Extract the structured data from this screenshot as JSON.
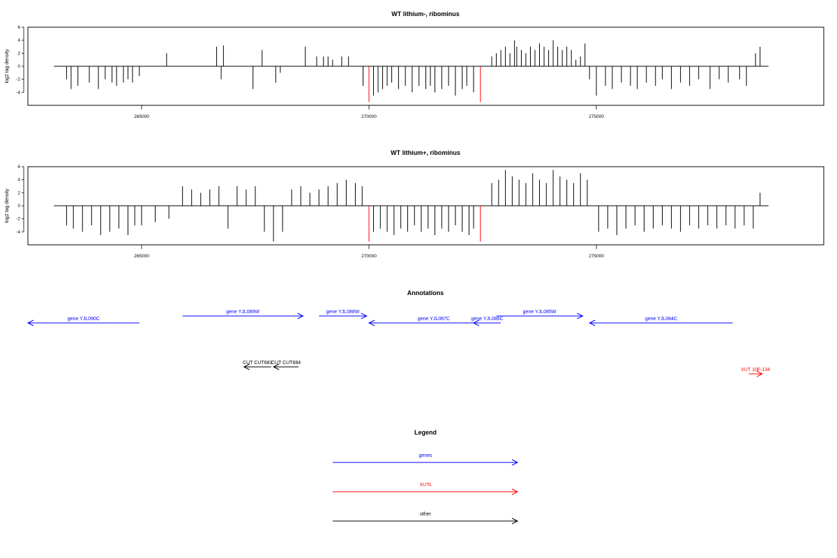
{
  "chart_data": [
    {
      "type": "bar",
      "title": "WT lithium-, ribominus",
      "ylabel": "log2 tag density",
      "xlim": [
        262500,
        280000
      ],
      "ylim": [
        -6,
        6
      ],
      "yticks": [
        -4,
        -2,
        0,
        2,
        4,
        6
      ],
      "xticks": [
        265000,
        270000,
        275000
      ],
      "x_tick_labels": [
        "265000",
        "270000",
        "275000"
      ],
      "series": [
        {
          "color": "#000000",
          "x": [
            263350,
            263450,
            263600,
            263850,
            264050,
            264200,
            264350,
            264450,
            264600,
            264700,
            264800,
            264950,
            265550,
            266650,
            266750,
            266800,
            267450,
            267650,
            267950,
            268050,
            268600,
            268850,
            269000,
            269100,
            269200,
            269400,
            269550,
            269870,
            270100,
            270200,
            270300,
            270400,
            270500,
            270650,
            270800,
            270950,
            271100,
            271250,
            271350,
            271450,
            271600,
            271750,
            271900,
            272050,
            272150,
            272300,
            272700,
            272800,
            272900,
            273000,
            273100,
            273200,
            273250,
            273350,
            273450,
            273550,
            273650,
            273750,
            273850,
            273950,
            274050,
            274150,
            274250,
            274350,
            274450,
            274550,
            274650,
            274750,
            274850,
            275000,
            275200,
            275350,
            275550,
            275750,
            275900,
            276100,
            276300,
            276450,
            276650,
            276850,
            277050,
            277250,
            277500,
            277700,
            277900,
            278150,
            278300,
            278500,
            278600
          ],
          "y": [
            -2,
            -3.5,
            -3,
            -2.5,
            -3.5,
            -2,
            -2.5,
            -3,
            -2.5,
            -2,
            -2.5,
            -1.5,
            2,
            3,
            -2,
            3.2,
            -3.5,
            2.5,
            -2.5,
            -1,
            3,
            1.5,
            1.5,
            1.5,
            1,
            1.5,
            1.5,
            -3,
            -4.5,
            -4,
            -3.5,
            -3,
            -2.5,
            -3.5,
            -3,
            -4,
            -3,
            -3.5,
            -3,
            -4,
            -3.5,
            -3,
            -4.5,
            -3.5,
            -3,
            -4,
            1.5,
            2,
            2.5,
            3,
            2,
            4,
            3,
            2.5,
            2,
            3,
            2.5,
            3.5,
            3,
            2.5,
            4,
            3,
            2.5,
            3,
            2.5,
            1,
            1.5,
            3.5,
            -2,
            -4.5,
            -3,
            -3.5,
            -2.5,
            -3,
            -3.5,
            -2.5,
            -3,
            -2,
            -3.5,
            -2.5,
            -3,
            -2,
            -3.5,
            -2,
            -2.5,
            -2,
            -3,
            2,
            3
          ]
        },
        {
          "color": "#ff0000",
          "x": [
            270000,
            272450
          ],
          "y": [
            -5.5,
            -5.5
          ]
        }
      ]
    },
    {
      "type": "bar",
      "title": "WT lithium+, ribominus",
      "ylabel": "log2 tag density",
      "xlim": [
        262500,
        280000
      ],
      "ylim": [
        -6,
        6
      ],
      "yticks": [
        -4,
        -2,
        0,
        2,
        4,
        6
      ],
      "xticks": [
        265000,
        270000,
        275000
      ],
      "x_tick_labels": [
        "265000",
        "270000",
        "275000"
      ],
      "series": [
        {
          "color": "#000000",
          "x": [
            263350,
            263500,
            263700,
            263900,
            264100,
            264300,
            264500,
            264700,
            264850,
            265000,
            265300,
            265600,
            265900,
            266100,
            266300,
            266500,
            266700,
            266900,
            267100,
            267300,
            267500,
            267700,
            267900,
            268100,
            268300,
            268500,
            268700,
            268900,
            269100,
            269300,
            269500,
            269700,
            269850,
            270100,
            270250,
            270400,
            270550,
            270700,
            270850,
            271000,
            271150,
            271300,
            271450,
            271600,
            271750,
            271900,
            272050,
            272200,
            272300,
            272700,
            272850,
            273000,
            273150,
            273300,
            273450,
            273600,
            273750,
            273900,
            274050,
            274200,
            274350,
            274500,
            274650,
            274800,
            275050,
            275250,
            275450,
            275650,
            275850,
            276050,
            276250,
            276450,
            276650,
            276850,
            277050,
            277250,
            277450,
            277650,
            277850,
            278050,
            278250,
            278450,
            278600
          ],
          "y": [
            -3,
            -3.5,
            -4,
            -3,
            -4.5,
            -4,
            -3.5,
            -4.5,
            -3,
            -3,
            -2.5,
            -2,
            3,
            2.5,
            2,
            2.5,
            3,
            -3.5,
            3,
            2.5,
            3,
            -4,
            -5.5,
            -4,
            2.5,
            3,
            2,
            2.5,
            3,
            3.5,
            4,
            3.5,
            3,
            -4,
            -3.5,
            -4,
            -4.5,
            -3.5,
            -4,
            -3,
            -4,
            -3.5,
            -4.5,
            -3.5,
            -4,
            -3,
            -4,
            -4.5,
            -3.5,
            3.5,
            4,
            5.5,
            4.5,
            4,
            3.5,
            5,
            4,
            3.5,
            5.5,
            4.5,
            4,
            3.5,
            5,
            4,
            -4,
            -3.5,
            -4.5,
            -3.5,
            -3,
            -4,
            -3.5,
            -3,
            -3.5,
            -4,
            -3,
            -3.5,
            -3,
            -3.5,
            -3,
            -3.5,
            -3,
            -3.5,
            2
          ]
        },
        {
          "color": "#ff0000",
          "x": [
            270000,
            272450
          ],
          "y": [
            -5.5,
            -5.5
          ]
        }
      ]
    }
  ],
  "annotations": {
    "title": "Annotations",
    "genes_color": "#0000ff",
    "xut_color": "#ff0000",
    "other_color": "#000000",
    "features": [
      {
        "label": "gene YJL090C",
        "kind": "gene",
        "strand": "-",
        "start": 262500,
        "end": 264950,
        "row": 2
      },
      {
        "label": "gene YJL089W",
        "kind": "gene",
        "strand": "+",
        "start": 265900,
        "end": 268550,
        "row": 1
      },
      {
        "label": "gene YJL088W",
        "kind": "gene",
        "strand": "+",
        "start": 268900,
        "end": 269950,
        "row": 1
      },
      {
        "label": "gene YJL087C",
        "kind": "gene",
        "strand": "-",
        "start": 270000,
        "end": 272850,
        "row": 2
      },
      {
        "label": "gene YJL086C",
        "kind": "gene",
        "strand": "-",
        "start": 272300,
        "end": 272900,
        "row": 2
      },
      {
        "label": "gene YJL085W",
        "kind": "gene",
        "strand": "+",
        "start": 272800,
        "end": 274700,
        "row": 1
      },
      {
        "label": "gene YJL084C",
        "kind": "gene",
        "strand": "-",
        "start": 274850,
        "end": 278000,
        "row": 2
      },
      {
        "label": "CUT CUT683",
        "kind": "other",
        "strand": "-",
        "start": 267250,
        "end": 267850,
        "row": 3
      },
      {
        "label": "CUT CUT684",
        "kind": "other",
        "strand": "-",
        "start": 267900,
        "end": 268450,
        "row": 3
      },
      {
        "label": "XUT 10F-134",
        "kind": "xut",
        "strand": "+",
        "start": 278350,
        "end": 278650,
        "row": 4
      }
    ]
  },
  "legend": {
    "title": "Legend",
    "items": [
      {
        "label": "genes",
        "color": "#0000ff"
      },
      {
        "label": "XUTs",
        "color": "#ff0000"
      },
      {
        "label": "other",
        "color": "#000000"
      }
    ]
  }
}
